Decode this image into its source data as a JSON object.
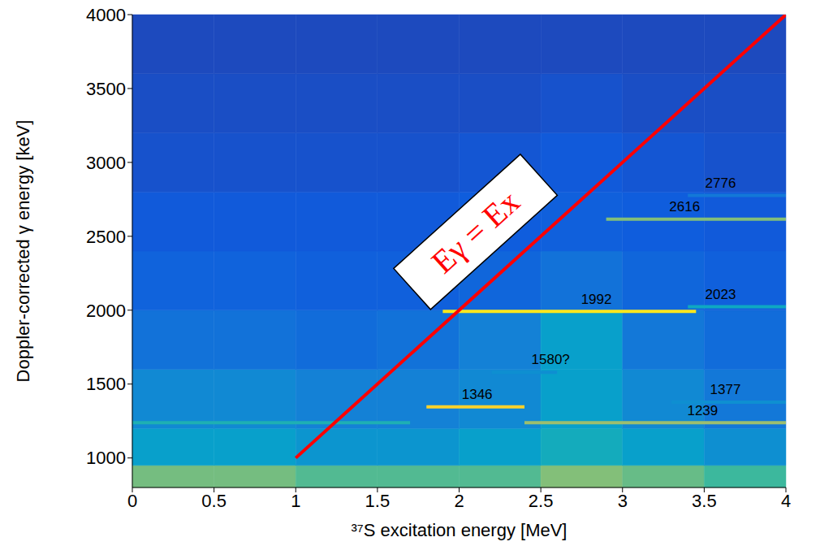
{
  "chart_data": {
    "type": "heatmap",
    "x_label": "³⁷S excitation energy [MeV]",
    "y_label": "Doppler-corrected γ energy [keV]",
    "xlim": [
      0,
      4
    ],
    "ylim": [
      800,
      4000
    ],
    "xticks": [
      0,
      0.5,
      1,
      1.5,
      2,
      2.5,
      3,
      3.5,
      4
    ],
    "yticks": [
      1000,
      1500,
      2000,
      2500,
      3000,
      3500,
      4000
    ],
    "grid": false,
    "x_bins": [
      0,
      0.5,
      1,
      1.5,
      2,
      2.5,
      3,
      3.5,
      4
    ],
    "y_bins": [
      800,
      950,
      1200,
      1600,
      2000,
      2400,
      2800,
      3200,
      3600,
      4000
    ],
    "cells": [
      [
        60,
        60,
        55,
        55,
        55,
        62,
        58,
        52
      ],
      [
        36,
        36,
        32,
        32,
        36,
        42,
        36,
        30
      ],
      [
        28,
        28,
        25,
        25,
        28,
        36,
        28,
        22
      ],
      [
        20,
        20,
        18,
        20,
        25,
        36,
        22,
        18
      ],
      [
        15,
        15,
        14,
        14,
        16,
        20,
        16,
        14
      ],
      [
        12,
        12,
        12,
        12,
        13,
        14,
        13,
        12
      ],
      [
        10,
        10,
        10,
        10,
        11,
        12,
        11,
        10
      ],
      [
        9,
        9,
        9,
        9,
        9,
        10,
        9,
        9
      ],
      [
        8,
        8,
        8,
        8,
        8,
        8,
        8,
        8
      ]
    ],
    "zlim": [
      0,
      100
    ],
    "gamma_lines": [
      {
        "energy": 1346,
        "x": [
          1.8,
          2.4
        ],
        "value": 90
      },
      {
        "energy": 1992,
        "x": [
          1.9,
          3.45
        ],
        "value": 95
      },
      {
        "energy": 2616,
        "x": [
          2.9,
          4.0
        ],
        "value": 62
      },
      {
        "energy": 1239,
        "x": [
          0.0,
          1.7
        ],
        "value": 45
      },
      {
        "energy": 1239,
        "x": [
          2.4,
          4.0
        ],
        "value": 66
      },
      {
        "energy": 2023,
        "x": [
          3.4,
          4.0
        ],
        "value": 40
      },
      {
        "energy": 1377,
        "x": [
          3.3,
          4.0
        ],
        "value": 30
      },
      {
        "energy": 1580,
        "x": [
          2.2,
          2.6
        ],
        "value": 30
      },
      {
        "energy": 2776,
        "x": [
          3.4,
          4.0
        ],
        "value": 22
      }
    ],
    "diagonal": {
      "x": [
        1,
        4
      ],
      "y": [
        1000,
        4000
      ],
      "color": "#ff0000"
    },
    "annotations": [
      {
        "text": "Eγ = Ex",
        "x": 2.1,
        "y": 2530,
        "color": "#ff0000"
      },
      {
        "text": "2776",
        "x": 3.6,
        "y": 2860
      },
      {
        "text": "2616",
        "x": 3.38,
        "y": 2700
      },
      {
        "text": "1992",
        "x": 2.84,
        "y": 2075
      },
      {
        "text": "2023",
        "x": 3.6,
        "y": 2105
      },
      {
        "text": "1580?",
        "x": 2.56,
        "y": 1665
      },
      {
        "text": "1377",
        "x": 3.63,
        "y": 1460
      },
      {
        "text": "1346",
        "x": 2.11,
        "y": 1430
      },
      {
        "text": "1239",
        "x": 3.49,
        "y": 1320
      }
    ]
  }
}
